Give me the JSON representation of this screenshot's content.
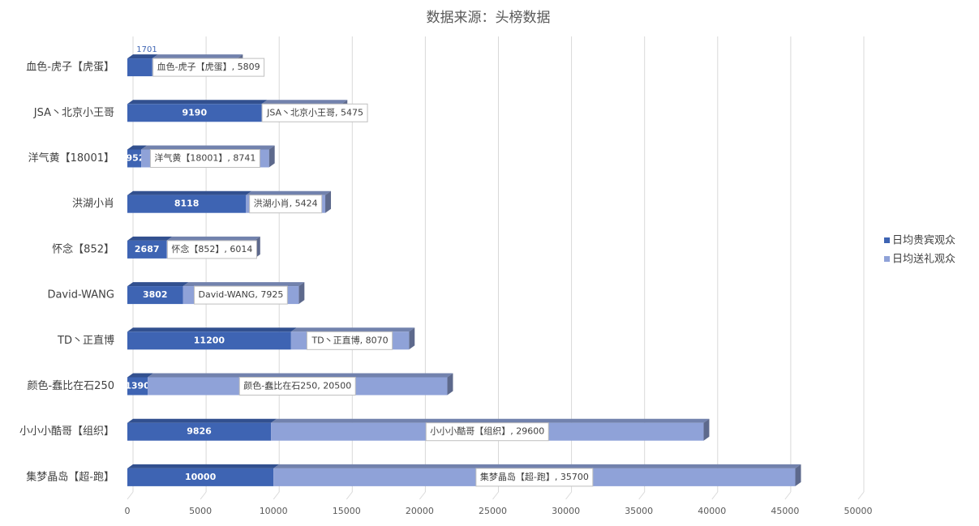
{
  "chart_data": {
    "type": "bar",
    "orientation": "horizontal",
    "stacked": true,
    "title": "数据来源：头榜数据",
    "categories": [
      "血色-虎子【虎蛋】",
      "JSA丶北京小王哥",
      "洋气黄【18001】",
      "洪湖小肖",
      "怀念【852】",
      "David-WANG",
      "TD丶正直博",
      "颜色-蠢比在石250",
      "小小小酷哥【组织】",
      "集梦晶岛【超-跑】"
    ],
    "series": [
      {
        "name": "日均贵宾观众",
        "color": "#3e64b3",
        "values": [
          1701,
          9190,
          952,
          8118,
          2687,
          3802,
          11200,
          1390,
          9826,
          10000
        ]
      },
      {
        "name": "日均送礼观众",
        "color": "#8fa2d8",
        "values": [
          5809,
          5475,
          8741,
          5424,
          6014,
          7925,
          8070,
          20500,
          29600,
          35700
        ],
        "value_labels": [
          "血色-虎子【虎蛋】, 5809",
          "JSA丶北京小王哥, 5475",
          "洋气黄【18001】, 8741",
          "洪湖小肖, 5424",
          "怀念【852】, 6014",
          "David-WANG, 7925",
          "TD丶正直博, 8070",
          "颜色-蠢比在石250, 20500",
          "小小小酷哥【组织】, 29600",
          "集梦晶岛【超-跑】, 35700"
        ]
      }
    ],
    "xlim": [
      0,
      50000
    ],
    "xticks": [
      0,
      5000,
      10000,
      15000,
      20000,
      25000,
      30000,
      35000,
      40000,
      45000,
      50000
    ],
    "grid": true,
    "legend": "right"
  }
}
